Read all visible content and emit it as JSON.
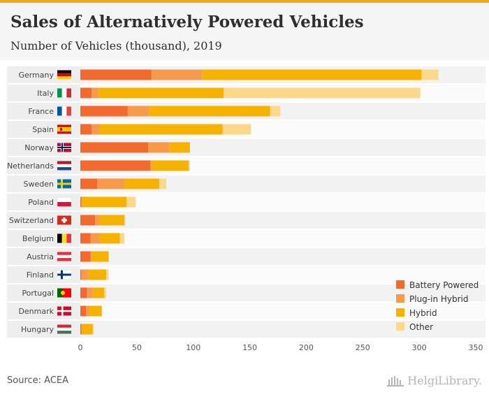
{
  "header": {
    "title": "Sales of Alternatively Powered Vehicles",
    "subtitle": "Number of Vehicles (thousand), 2019"
  },
  "footer": {
    "source": "Source: ACEA",
    "brand": "HelgiLibrary."
  },
  "colors": {
    "battery": "#f36a2e",
    "plugin": "#f79a4c",
    "hybrid": "#f7b200",
    "other": "#fcd88a",
    "accent": "#f6a81c"
  },
  "chart_data": {
    "type": "bar",
    "orientation": "horizontal",
    "stacked": true,
    "categories": [
      "Germany",
      "Italy",
      "France",
      "Spain",
      "Norway",
      "Netherlands",
      "Sweden",
      "Poland",
      "Switzerland",
      "Belgium",
      "Austria",
      "Finland",
      "Portugal",
      "Denmark",
      "Hungary"
    ],
    "series": [
      {
        "name": "Battery Powered",
        "color": "#f36a2e",
        "values": [
          63,
          10,
          42,
          10,
          60,
          62,
          15,
          1,
          13,
          9,
          9,
          1,
          6,
          5,
          1
        ]
      },
      {
        "name": "Plug-in Hybrid",
        "color": "#f79a4c",
        "values": [
          45,
          6,
          19,
          7,
          19,
          1,
          24,
          0,
          4,
          8,
          1,
          6,
          5,
          3,
          0
        ]
      },
      {
        "name": "Hybrid",
        "color": "#f7b200",
        "values": [
          194,
          111,
          107,
          109,
          18,
          33,
          31,
          40,
          22,
          18,
          15,
          16,
          10,
          11,
          10
        ]
      },
      {
        "name": "Other",
        "color": "#fcd88a",
        "values": [
          15,
          174,
          9,
          25,
          0,
          1,
          6,
          8,
          1,
          4,
          0,
          2,
          2,
          0,
          1
        ]
      }
    ],
    "xlim": [
      0,
      350
    ],
    "xticks": [
      0,
      50,
      100,
      150,
      200,
      250,
      300,
      350
    ],
    "legend_position": "bottom-right",
    "grid": false,
    "flags": [
      "germany",
      "italy",
      "france",
      "spain",
      "norway",
      "netherlands",
      "sweden",
      "poland",
      "switzerland",
      "belgium",
      "austria",
      "finland",
      "portugal",
      "denmark",
      "hungary"
    ]
  }
}
